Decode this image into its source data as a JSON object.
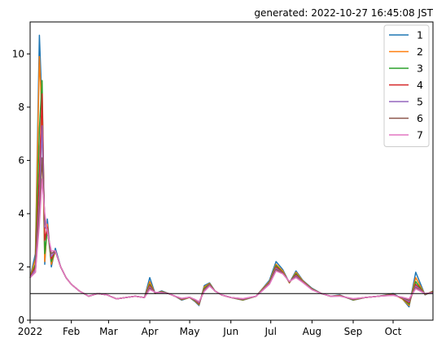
{
  "header": {
    "generated": "generated: 2022-10-27 16:45:08 JST"
  },
  "chart_data": {
    "type": "line",
    "title": "",
    "xlabel": "",
    "ylabel": "",
    "x_range": [
      "2022-01-01",
      "2022-10-31"
    ],
    "ylim": [
      0,
      11.2
    ],
    "y_ticks": [
      0,
      2,
      4,
      6,
      8,
      10
    ],
    "x_ticks": [
      {
        "date": "2022-01-01",
        "label": "2022"
      },
      {
        "date": "2022-02-01",
        "label": "Feb"
      },
      {
        "date": "2022-03-01",
        "label": "Mar"
      },
      {
        "date": "2022-04-01",
        "label": "Apr"
      },
      {
        "date": "2022-05-01",
        "label": "May"
      },
      {
        "date": "2022-06-01",
        "label": "Jun"
      },
      {
        "date": "2022-07-01",
        "label": "Jul"
      },
      {
        "date": "2022-08-01",
        "label": "Aug"
      },
      {
        "date": "2022-09-01",
        "label": "Sep"
      },
      {
        "date": "2022-10-01",
        "label": "Oct"
      }
    ],
    "reference_line": 1,
    "grid": false,
    "legend_position": "top-right",
    "x": [
      "2022-01-01",
      "2022-01-05",
      "2022-01-08",
      "2022-01-10",
      "2022-01-12",
      "2022-01-14",
      "2022-01-17",
      "2022-01-20",
      "2022-01-24",
      "2022-01-28",
      "2022-02-01",
      "2022-02-07",
      "2022-02-14",
      "2022-02-21",
      "2022-02-28",
      "2022-03-07",
      "2022-03-14",
      "2022-03-21",
      "2022-03-28",
      "2022-04-01",
      "2022-04-05",
      "2022-04-10",
      "2022-04-15",
      "2022-04-20",
      "2022-04-25",
      "2022-05-01",
      "2022-05-05",
      "2022-05-08",
      "2022-05-12",
      "2022-05-16",
      "2022-05-20",
      "2022-05-25",
      "2022-06-01",
      "2022-06-10",
      "2022-06-20",
      "2022-06-25",
      "2022-06-30",
      "2022-07-05",
      "2022-07-10",
      "2022-07-15",
      "2022-07-20",
      "2022-07-25",
      "2022-08-01",
      "2022-08-08",
      "2022-08-15",
      "2022-08-22",
      "2022-09-01",
      "2022-09-10",
      "2022-09-20",
      "2022-10-01",
      "2022-10-08",
      "2022-10-13",
      "2022-10-18",
      "2022-10-25",
      "2022-10-31"
    ],
    "series": [
      {
        "name": "1",
        "color": "#1f77b4",
        "values": [
          1.6,
          2.5,
          10.7,
          8.0,
          2.1,
          3.8,
          2.0,
          2.7,
          2.0,
          1.6,
          1.35,
          1.1,
          0.9,
          1.0,
          0.95,
          0.8,
          0.85,
          0.9,
          0.85,
          1.6,
          1.0,
          1.1,
          1.0,
          0.9,
          0.75,
          0.85,
          0.7,
          0.55,
          1.3,
          1.4,
          1.1,
          0.95,
          0.85,
          0.75,
          0.9,
          1.2,
          1.5,
          2.2,
          1.9,
          1.4,
          1.85,
          1.5,
          1.2,
          1.0,
          0.9,
          0.95,
          0.75,
          0.85,
          0.9,
          1.0,
          0.8,
          0.5,
          1.8,
          0.95,
          1.1
        ]
      },
      {
        "name": "2",
        "color": "#ff7f0e",
        "values": [
          1.6,
          2.3,
          9.9,
          7.5,
          2.2,
          3.6,
          2.1,
          2.6,
          2.0,
          1.6,
          1.35,
          1.1,
          0.9,
          1.0,
          0.95,
          0.8,
          0.85,
          0.9,
          0.85,
          1.45,
          1.0,
          1.08,
          1.0,
          0.9,
          0.77,
          0.85,
          0.72,
          0.58,
          1.25,
          1.38,
          1.1,
          0.95,
          0.85,
          0.76,
          0.9,
          1.18,
          1.45,
          2.1,
          1.85,
          1.4,
          1.8,
          1.48,
          1.18,
          1.0,
          0.9,
          0.93,
          0.76,
          0.85,
          0.9,
          0.98,
          0.8,
          0.55,
          1.6,
          0.96,
          1.08
        ]
      },
      {
        "name": "3",
        "color": "#2ca02c",
        "values": [
          1.6,
          2.1,
          7.2,
          9.0,
          2.5,
          3.4,
          2.2,
          2.6,
          2.0,
          1.6,
          1.35,
          1.1,
          0.9,
          1.0,
          0.95,
          0.8,
          0.85,
          0.9,
          0.85,
          1.35,
          1.02,
          1.07,
          1.0,
          0.9,
          0.78,
          0.86,
          0.74,
          0.6,
          1.2,
          1.36,
          1.1,
          0.95,
          0.85,
          0.77,
          0.9,
          1.16,
          1.42,
          2.05,
          1.8,
          1.42,
          1.75,
          1.46,
          1.17,
          1.0,
          0.9,
          0.92,
          0.77,
          0.85,
          0.9,
          0.97,
          0.82,
          0.6,
          1.45,
          0.97,
          1.06
        ]
      },
      {
        "name": "4",
        "color": "#d62728",
        "values": [
          1.6,
          2.0,
          5.5,
          8.5,
          3.0,
          3.5,
          2.3,
          2.6,
          2.0,
          1.6,
          1.35,
          1.1,
          0.9,
          1.0,
          0.95,
          0.8,
          0.85,
          0.9,
          0.85,
          1.3,
          1.03,
          1.06,
          1.0,
          0.9,
          0.79,
          0.86,
          0.75,
          0.62,
          1.15,
          1.34,
          1.1,
          0.95,
          0.85,
          0.78,
          0.9,
          1.15,
          1.4,
          2.0,
          1.78,
          1.43,
          1.7,
          1.45,
          1.16,
          1.0,
          0.9,
          0.92,
          0.78,
          0.85,
          0.9,
          0.96,
          0.83,
          0.65,
          1.35,
          0.98,
          1.05
        ]
      },
      {
        "name": "5",
        "color": "#9467bd",
        "values": [
          1.6,
          1.9,
          4.5,
          7.3,
          3.5,
          3.4,
          2.4,
          2.6,
          2.0,
          1.6,
          1.35,
          1.1,
          0.9,
          1.0,
          0.95,
          0.8,
          0.85,
          0.9,
          0.85,
          1.25,
          1.03,
          1.05,
          1.0,
          0.9,
          0.8,
          0.86,
          0.76,
          0.65,
          1.12,
          1.32,
          1.1,
          0.95,
          0.85,
          0.79,
          0.9,
          1.14,
          1.38,
          1.95,
          1.76,
          1.44,
          1.66,
          1.44,
          1.15,
          1.0,
          0.9,
          0.91,
          0.79,
          0.85,
          0.9,
          0.95,
          0.84,
          0.7,
          1.28,
          0.99,
          1.04
        ]
      },
      {
        "name": "6",
        "color": "#8c564b",
        "values": [
          1.6,
          1.8,
          4.0,
          6.1,
          3.8,
          3.3,
          2.5,
          2.6,
          2.0,
          1.6,
          1.35,
          1.1,
          0.9,
          1.0,
          0.95,
          0.8,
          0.85,
          0.9,
          0.85,
          1.2,
          1.04,
          1.04,
          1.0,
          0.9,
          0.81,
          0.86,
          0.77,
          0.68,
          1.1,
          1.3,
          1.1,
          0.95,
          0.85,
          0.8,
          0.9,
          1.13,
          1.36,
          1.9,
          1.75,
          1.45,
          1.62,
          1.43,
          1.15,
          1.0,
          0.9,
          0.91,
          0.8,
          0.85,
          0.9,
          0.94,
          0.85,
          0.75,
          1.22,
          1.0,
          1.03
        ]
      },
      {
        "name": "7",
        "color": "#e377c2",
        "values": [
          1.6,
          1.8,
          3.6,
          5.3,
          4.0,
          3.3,
          2.6,
          2.6,
          2.0,
          1.6,
          1.35,
          1.1,
          0.9,
          1.0,
          0.95,
          0.8,
          0.85,
          0.9,
          0.85,
          1.15,
          1.05,
          1.03,
          1.0,
          0.9,
          0.82,
          0.86,
          0.78,
          0.7,
          1.08,
          1.28,
          1.1,
          0.95,
          0.85,
          0.81,
          0.9,
          1.12,
          1.35,
          1.85,
          1.74,
          1.46,
          1.6,
          1.42,
          1.14,
          1.0,
          0.9,
          0.9,
          0.81,
          0.85,
          0.9,
          0.93,
          0.86,
          0.8,
          1.18,
          1.0,
          1.02
        ]
      }
    ]
  }
}
